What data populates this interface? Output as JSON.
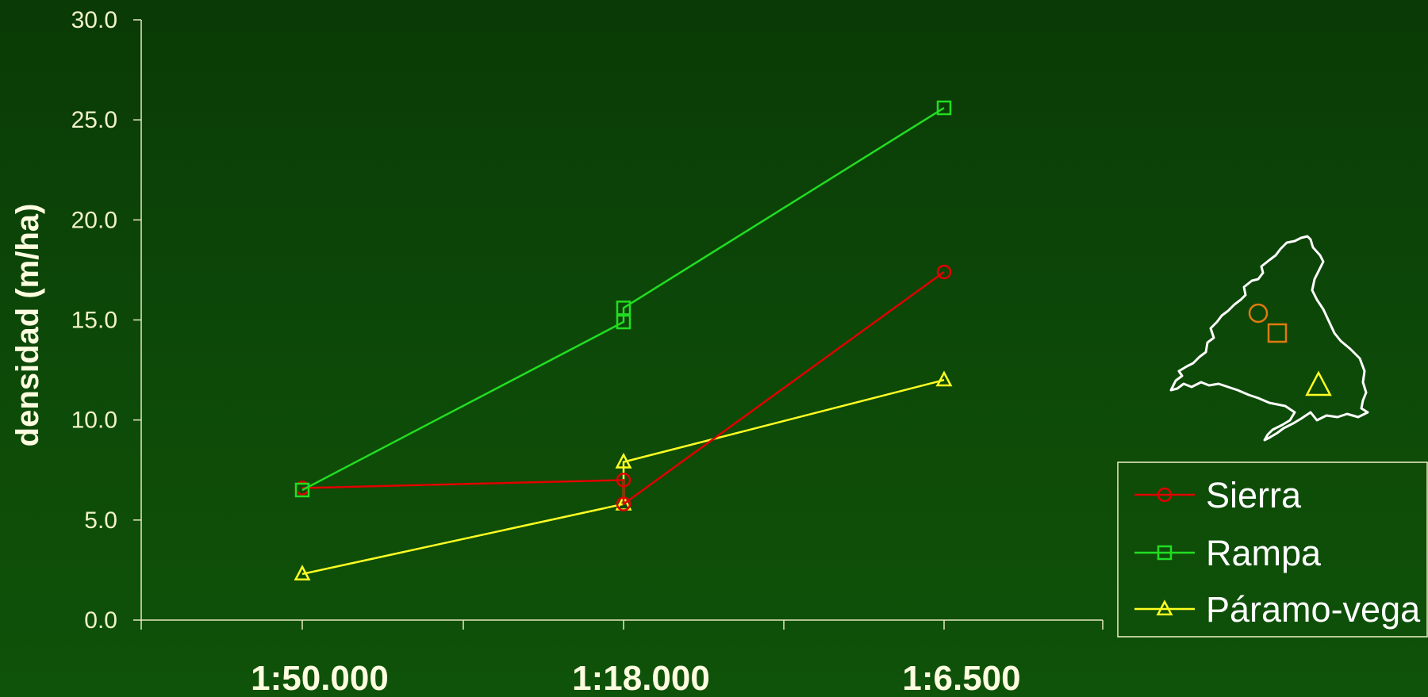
{
  "chart_data": {
    "type": "line",
    "ylabel": "densidad (m/ha)",
    "xlabel": "",
    "categories": [
      "1:50.000",
      "1:18.000",
      "1:6.500"
    ],
    "ylim": [
      0,
      30
    ],
    "yticks": [
      "0.0",
      "5.0",
      "10.0",
      "15.0",
      "20.0",
      "25.0",
      "30.0"
    ],
    "grid": false,
    "legend_position": "bottom-right",
    "series": [
      {
        "name": "Sierra",
        "color": "#e00000",
        "marker": "circle",
        "points": [
          {
            "x": "1:50.000",
            "y": 6.6
          },
          {
            "x": "1:18.000",
            "y": 7.0
          },
          {
            "x": "1:18.000",
            "y": 5.8
          },
          {
            "x": "1:6.500",
            "y": 17.4
          }
        ]
      },
      {
        "name": "Rampa",
        "color": "#22dd22",
        "marker": "square",
        "points": [
          {
            "x": "1:50.000",
            "y": 6.5
          },
          {
            "x": "1:18.000",
            "y": 14.9
          },
          {
            "x": "1:18.000",
            "y": 15.6
          },
          {
            "x": "1:6.500",
            "y": 25.6
          }
        ]
      },
      {
        "name": "Páramo-vega",
        "color": "#ffff22",
        "marker": "triangle",
        "points": [
          {
            "x": "1:50.000",
            "y": 2.3
          },
          {
            "x": "1:18.000",
            "y": 5.8
          },
          {
            "x": "1:18.000",
            "y": 7.9
          },
          {
            "x": "1:6.500",
            "y": 12.0
          }
        ]
      }
    ],
    "inset_map": {
      "outline_color": "#ffffff",
      "markers": [
        {
          "shape": "circle",
          "color": "#e07a10"
        },
        {
          "shape": "square",
          "color": "#e07a10"
        },
        {
          "shape": "triangle",
          "color": "#ffff22"
        }
      ]
    }
  }
}
